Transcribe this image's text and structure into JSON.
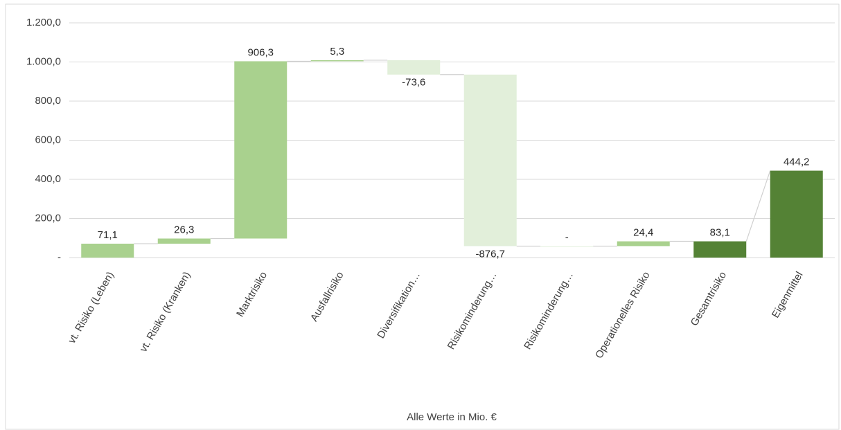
{
  "chart_data": {
    "type": "waterfall",
    "categories": [
      "vt. Risiko (Leben)",
      "vt. Risiko (Kranken)",
      "Marktrisiko",
      "Ausfallrisiko",
      "Diversifikation…",
      "Risikominderung…",
      "Risikominderung…",
      "Operationelles Risiko",
      "Gesamtrisiko",
      "Eigenmittel"
    ],
    "values": [
      71.1,
      26.3,
      906.3,
      5.3,
      -73.6,
      -876.7,
      0,
      24.4,
      83.1,
      444.2
    ],
    "value_labels": [
      "71,1",
      "26,3",
      "906,3",
      "5,3",
      "-73,6",
      "-876,7",
      "-",
      "24,4",
      "83,1",
      "444,2"
    ],
    "is_total": [
      false,
      false,
      false,
      false,
      false,
      false,
      false,
      false,
      true,
      true
    ],
    "colors": [
      "#a9d18e",
      "#a9d18e",
      "#a9d18e",
      "#a9d18e",
      "#e2efda",
      "#e2efda",
      "#e2efda",
      "#a9d18e",
      "#548235",
      "#548235"
    ],
    "ylim": [
      0,
      1200
    ],
    "yticks": [
      {
        "value": 0,
        "label": "-"
      },
      {
        "value": 200,
        "label": "200,0"
      },
      {
        "value": 400,
        "label": "400,0"
      },
      {
        "value": 600,
        "label": "600,0"
      },
      {
        "value": 800,
        "label": "800,0"
      },
      {
        "value": 1000,
        "label": "1.000,0"
      },
      {
        "value": 1200,
        "label": "1.200,0"
      }
    ],
    "grid": true,
    "x_label": "Alle Werte in Mio. €"
  }
}
